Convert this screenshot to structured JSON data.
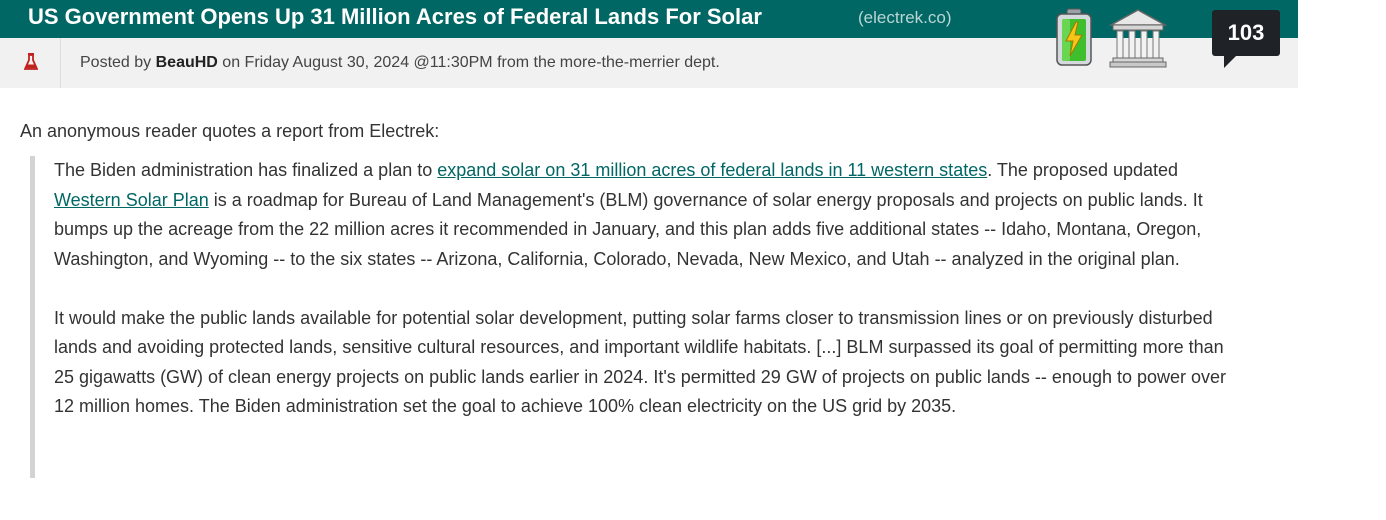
{
  "story": {
    "title": "US Government Opens Up 31 Million Acres of Federal Lands For Solar",
    "source": "(electrek.co)",
    "comment_count": "103"
  },
  "byline": {
    "prefix": "Posted by",
    "author": "BeauHD",
    "date_text": "on Friday August 30, 2024 @11:30PM from the",
    "dept": "more-the-merrier",
    "dept_suffix": "dept."
  },
  "icons": {
    "topic_cell": "flask-icon",
    "topic_1": "battery-icon",
    "topic_2": "government-building-icon"
  },
  "body": {
    "intro": "An anonymous reader quotes a report from Electrek:",
    "p1_a": "The Biden administration has finalized a plan to ",
    "p1_link1": "expand solar on 31 million acres of federal lands in 11 western states",
    "p1_b": ". The proposed updated ",
    "p1_link2": "Western Solar Plan",
    "p1_c": " is a roadmap for Bureau of Land Management's (BLM) governance of solar energy proposals and projects on public lands. It bumps up the acreage from the 22 million acres it recommended in January, and this plan adds five additional states -- Idaho, Montana, Oregon, Washington, and Wyoming -- to the six states -- Arizona, California, Colorado, Nevada, New Mexico, and Utah -- analyzed in the original plan.",
    "p2": "It would make the public lands available for potential solar development, putting solar farms closer to transmission lines or on previously disturbed lands and avoiding protected lands, sensitive cultural resources, and important wildlife habitats. [...] BLM surpassed its goal of permitting more than 25 gigawatts (GW) of clean energy projects on public lands earlier in 2024. It's permitted 29 GW of projects on public lands -- enough to power over 12 million homes. The Biden administration set the goal to achieve 100% clean electricity on the US grid by 2035."
  },
  "colors": {
    "title_bar": "#016765",
    "byline_bar": "#f1f1f1",
    "link": "#016765",
    "comment_bubble": "#1f2327",
    "quote_border": "#d3d3d3"
  }
}
